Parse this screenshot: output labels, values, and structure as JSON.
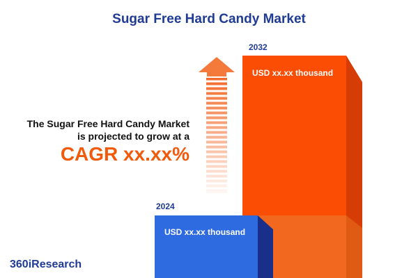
{
  "header": {
    "title": "Sugar Free Hard Candy Market"
  },
  "bars": [
    {
      "year": "2024",
      "label": "USD xx.xx thousand"
    },
    {
      "year": "2032",
      "label": "USD xx.xx thousand"
    }
  ],
  "statement": {
    "line1": "The Sugar Free Hard Candy Market",
    "line2": "is projected to grow at a",
    "cagr": "CAGR xx.xx%"
  },
  "footer": {
    "logo": "360iResearch"
  }
}
